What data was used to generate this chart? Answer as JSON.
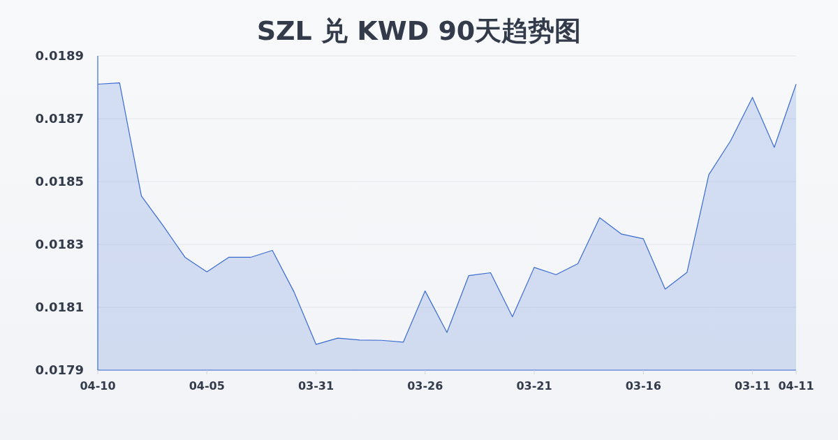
{
  "chart_data": {
    "type": "area",
    "title": "SZL 兑 KWD 90天趋势图",
    "categories": [
      "04-10",
      null,
      null,
      null,
      null,
      "04-05",
      null,
      null,
      null,
      null,
      "03-31",
      null,
      null,
      null,
      null,
      "03-26",
      null,
      null,
      null,
      null,
      "03-21",
      null,
      null,
      null,
      null,
      "03-16",
      null,
      null,
      null,
      null,
      "03-11",
      null,
      "04-11"
    ],
    "values": [
      0.01881,
      0.018814,
      0.018454,
      0.018359,
      0.018259,
      0.018213,
      0.018259,
      0.018259,
      0.018281,
      0.018148,
      0.017982,
      0.018002,
      0.017996,
      0.017995,
      0.017989,
      0.018152,
      0.01802,
      0.018201,
      0.01821,
      0.01807,
      0.018227,
      0.018204,
      0.018239,
      0.018385,
      0.018333,
      0.018318,
      0.018158,
      0.018211,
      0.018522,
      0.01863,
      0.018768,
      0.018609,
      0.01881
    ],
    "color": "#3a6bd0",
    "ylim": [
      0.0179,
      0.0189
    ],
    "yticks": [
      0.0179,
      0.0181,
      0.0183,
      0.0185,
      0.0187,
      0.0189
    ],
    "grid": "y"
  }
}
